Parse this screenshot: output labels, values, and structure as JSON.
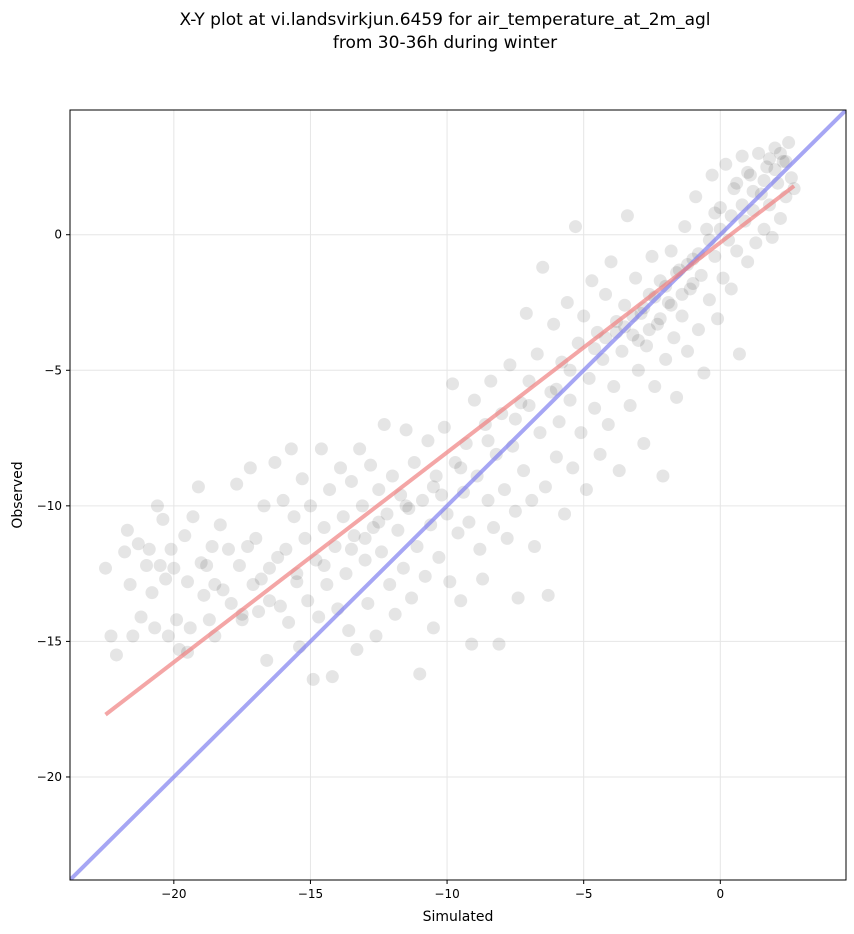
{
  "chart_data": {
    "type": "scatter",
    "title": [
      "X-Y plot at vi.landsvirkjun.6459 for air_temperature_at_2m_agl",
      "from 30-36h during winter"
    ],
    "xlabel": "Simulated",
    "ylabel": "Observed",
    "xlim": [
      -23.8,
      4.6
    ],
    "ylim": [
      -23.8,
      4.6
    ],
    "x_ticks": [
      -20,
      -15,
      -10,
      -5,
      0
    ],
    "y_ticks": [
      -20,
      -15,
      -10,
      -5,
      0
    ],
    "x_tick_labels": [
      "−20",
      "−15",
      "−10",
      "−5",
      "0"
    ],
    "y_tick_labels": [
      "−20",
      "−15",
      "−10",
      "−5",
      "0"
    ],
    "grid": true,
    "point_color": "#000000",
    "point_alpha": 0.1,
    "regression_line": {
      "color": "#f08080",
      "from": [
        -22.5,
        -17.7
      ],
      "to": [
        2.7,
        1.8
      ]
    },
    "identity_line": {
      "color": "#8080f0",
      "from": [
        -23.8,
        -23.8
      ],
      "to": [
        4.6,
        4.6
      ]
    },
    "points": [
      [
        -22.5,
        -12.3
      ],
      [
        -22.3,
        -14.8
      ],
      [
        -22.1,
        -15.5
      ],
      [
        -21.8,
        -11.7
      ],
      [
        -21.7,
        -10.9
      ],
      [
        -21.6,
        -12.9
      ],
      [
        -21.5,
        -14.8
      ],
      [
        -21.3,
        -11.4
      ],
      [
        -21.2,
        -14.1
      ],
      [
        -21.0,
        -12.2
      ],
      [
        -20.9,
        -11.6
      ],
      [
        -20.8,
        -13.2
      ],
      [
        -20.7,
        -14.5
      ],
      [
        -20.6,
        -10.0
      ],
      [
        -20.5,
        -12.2
      ],
      [
        -20.4,
        -10.5
      ],
      [
        -20.3,
        -12.7
      ],
      [
        -20.2,
        -14.8
      ],
      [
        -20.1,
        -11.6
      ],
      [
        -20.0,
        -12.3
      ],
      [
        -19.9,
        -14.2
      ],
      [
        -19.8,
        -15.3
      ],
      [
        -19.6,
        -11.1
      ],
      [
        -19.5,
        -12.8
      ],
      [
        -19.4,
        -14.5
      ],
      [
        -19.3,
        -10.4
      ],
      [
        -19.1,
        -9.3
      ],
      [
        -19.0,
        -12.1
      ],
      [
        -18.9,
        -13.3
      ],
      [
        -18.8,
        -12.2
      ],
      [
        -18.7,
        -14.2
      ],
      [
        -18.6,
        -11.5
      ],
      [
        -18.5,
        -12.9
      ],
      [
        -18.3,
        -10.7
      ],
      [
        -18.2,
        -13.1
      ],
      [
        -18.0,
        -11.6
      ],
      [
        -17.9,
        -13.6
      ],
      [
        -17.7,
        -9.2
      ],
      [
        -17.6,
        -12.2
      ],
      [
        -17.5,
        -14.0
      ],
      [
        -17.3,
        -11.5
      ],
      [
        -17.2,
        -8.6
      ],
      [
        -17.1,
        -12.9
      ],
      [
        -17.0,
        -11.2
      ],
      [
        -16.9,
        -13.9
      ],
      [
        -16.8,
        -12.7
      ],
      [
        -16.7,
        -10.0
      ],
      [
        -16.6,
        -15.7
      ],
      [
        -16.5,
        -12.3
      ],
      [
        -16.3,
        -8.4
      ],
      [
        -16.2,
        -11.9
      ],
      [
        -16.1,
        -13.7
      ],
      [
        -16.0,
        -9.8
      ],
      [
        -15.9,
        -11.6
      ],
      [
        -15.8,
        -14.3
      ],
      [
        -15.7,
        -7.9
      ],
      [
        -15.6,
        -10.4
      ],
      [
        -15.5,
        -12.5
      ],
      [
        -15.4,
        -15.2
      ],
      [
        -15.3,
        -9.0
      ],
      [
        -15.2,
        -11.2
      ],
      [
        -15.1,
        -13.5
      ],
      [
        -15.0,
        -10.0
      ],
      [
        -14.9,
        -16.4
      ],
      [
        -14.8,
        -12.0
      ],
      [
        -14.7,
        -14.1
      ],
      [
        -14.6,
        -7.9
      ],
      [
        -14.5,
        -10.8
      ],
      [
        -14.4,
        -12.9
      ],
      [
        -14.3,
        -9.4
      ],
      [
        -14.2,
        -16.3
      ],
      [
        -14.1,
        -11.5
      ],
      [
        -14.0,
        -13.8
      ],
      [
        -13.9,
        -8.6
      ],
      [
        -13.8,
        -10.4
      ],
      [
        -13.7,
        -12.5
      ],
      [
        -13.6,
        -14.6
      ],
      [
        -13.5,
        -9.1
      ],
      [
        -13.4,
        -11.1
      ],
      [
        -13.3,
        -15.3
      ],
      [
        -13.2,
        -7.9
      ],
      [
        -13.1,
        -10.0
      ],
      [
        -13.0,
        -12.0
      ],
      [
        -12.9,
        -13.6
      ],
      [
        -12.8,
        -8.5
      ],
      [
        -12.7,
        -10.8
      ],
      [
        -12.6,
        -14.8
      ],
      [
        -12.5,
        -9.4
      ],
      [
        -12.4,
        -11.7
      ],
      [
        -12.3,
        -7.0
      ],
      [
        -12.2,
        -10.3
      ],
      [
        -12.1,
        -12.9
      ],
      [
        -12.0,
        -8.9
      ],
      [
        -11.9,
        -14.0
      ],
      [
        -11.8,
        -10.9
      ],
      [
        -11.7,
        -9.6
      ],
      [
        -11.6,
        -12.3
      ],
      [
        -11.5,
        -7.2
      ],
      [
        -11.4,
        -10.1
      ],
      [
        -11.3,
        -13.4
      ],
      [
        -11.2,
        -8.4
      ],
      [
        -11.1,
        -11.5
      ],
      [
        -11.0,
        -16.2
      ],
      [
        -10.9,
        -9.8
      ],
      [
        -10.8,
        -12.6
      ],
      [
        -10.7,
        -7.6
      ],
      [
        -10.6,
        -10.7
      ],
      [
        -10.5,
        -14.5
      ],
      [
        -10.4,
        -8.9
      ],
      [
        -10.3,
        -11.9
      ],
      [
        -10.2,
        -9.6
      ],
      [
        -10.1,
        -7.1
      ],
      [
        -10.0,
        -10.3
      ],
      [
        -9.9,
        -12.8
      ],
      [
        -9.8,
        -5.5
      ],
      [
        -9.7,
        -8.4
      ],
      [
        -9.6,
        -11.0
      ],
      [
        -9.5,
        -13.5
      ],
      [
        -9.4,
        -9.5
      ],
      [
        -9.3,
        -7.7
      ],
      [
        -9.2,
        -10.6
      ],
      [
        -9.1,
        -15.1
      ],
      [
        -9.0,
        -6.1
      ],
      [
        -8.9,
        -8.9
      ],
      [
        -8.8,
        -11.6
      ],
      [
        -8.7,
        -12.7
      ],
      [
        -8.6,
        -7.0
      ],
      [
        -8.5,
        -9.8
      ],
      [
        -8.4,
        -5.4
      ],
      [
        -8.3,
        -10.8
      ],
      [
        -8.2,
        -8.1
      ],
      [
        -8.1,
        -15.1
      ],
      [
        -8.0,
        -6.6
      ],
      [
        -7.9,
        -9.4
      ],
      [
        -7.8,
        -11.2
      ],
      [
        -7.7,
        -4.8
      ],
      [
        -7.6,
        -7.8
      ],
      [
        -7.5,
        -10.2
      ],
      [
        -7.4,
        -13.4
      ],
      [
        -7.3,
        -6.2
      ],
      [
        -7.2,
        -8.7
      ],
      [
        -7.1,
        -2.9
      ],
      [
        -7.0,
        -5.4
      ],
      [
        -6.9,
        -9.8
      ],
      [
        -6.8,
        -11.5
      ],
      [
        -6.7,
        -4.4
      ],
      [
        -6.6,
        -7.3
      ],
      [
        -6.5,
        -1.2
      ],
      [
        -6.4,
        -9.3
      ],
      [
        -6.3,
        -13.3
      ],
      [
        -6.2,
        -5.8
      ],
      [
        -6.1,
        -3.3
      ],
      [
        -6.0,
        -8.2
      ],
      [
        -5.9,
        -6.9
      ],
      [
        -5.8,
        -4.7
      ],
      [
        -5.7,
        -10.3
      ],
      [
        -5.6,
        -2.5
      ],
      [
        -5.5,
        -6.1
      ],
      [
        -5.4,
        -8.6
      ],
      [
        -5.3,
        0.3
      ],
      [
        -5.2,
        -4.0
      ],
      [
        -5.1,
        -7.3
      ],
      [
        -5.0,
        -3.0
      ],
      [
        -4.9,
        -9.4
      ],
      [
        -4.8,
        -5.3
      ],
      [
        -4.7,
        -1.7
      ],
      [
        -4.6,
        -6.4
      ],
      [
        -4.5,
        -3.6
      ],
      [
        -4.4,
        -8.1
      ],
      [
        -4.3,
        -4.6
      ],
      [
        -4.2,
        -2.2
      ],
      [
        -4.1,
        -7.0
      ],
      [
        -4.0,
        -1.0
      ],
      [
        -3.9,
        -5.6
      ],
      [
        -3.8,
        -3.2
      ],
      [
        -3.7,
        -8.7
      ],
      [
        -3.6,
        -4.3
      ],
      [
        -3.5,
        -2.6
      ],
      [
        -3.4,
        0.7
      ],
      [
        -3.3,
        -6.3
      ],
      [
        -3.2,
        -3.7
      ],
      [
        -3.1,
        -1.6
      ],
      [
        -3.0,
        -5.0
      ],
      [
        -2.9,
        -2.9
      ],
      [
        -2.8,
        -7.7
      ],
      [
        -2.7,
        -4.1
      ],
      [
        -2.6,
        -2.2
      ],
      [
        -2.5,
        -0.8
      ],
      [
        -2.4,
        -5.6
      ],
      [
        -2.3,
        -3.3
      ],
      [
        -2.2,
        -1.7
      ],
      [
        -2.1,
        -8.9
      ],
      [
        -2.0,
        -4.6
      ],
      [
        -1.9,
        -2.5
      ],
      [
        -1.8,
        -0.6
      ],
      [
        -1.7,
        -3.8
      ],
      [
        -1.6,
        -6.0
      ],
      [
        -1.5,
        -1.3
      ],
      [
        -1.4,
        -3.0
      ],
      [
        -1.3,
        0.3
      ],
      [
        -1.2,
        -4.3
      ],
      [
        -1.1,
        -2.0
      ],
      [
        -1.0,
        -0.9
      ],
      [
        -0.9,
        1.4
      ],
      [
        -0.8,
        -3.5
      ],
      [
        -0.7,
        -1.5
      ],
      [
        -0.6,
        -5.1
      ],
      [
        -0.5,
        0.2
      ],
      [
        -0.4,
        -2.4
      ],
      [
        -0.3,
        2.2
      ],
      [
        -0.2,
        -0.8
      ],
      [
        -0.1,
        -3.1
      ],
      [
        0.0,
        1.0
      ],
      [
        0.1,
        -1.6
      ],
      [
        0.2,
        2.6
      ],
      [
        0.3,
        -0.2
      ],
      [
        0.4,
        -2.0
      ],
      [
        0.5,
        1.7
      ],
      [
        0.6,
        -0.6
      ],
      [
        0.7,
        -4.4
      ],
      [
        0.8,
        2.9
      ],
      [
        0.9,
        0.5
      ],
      [
        1.0,
        -1.0
      ],
      [
        1.1,
        2.2
      ],
      [
        1.2,
        0.9
      ],
      [
        1.3,
        -0.3
      ],
      [
        1.4,
        3.0
      ],
      [
        1.5,
        1.5
      ],
      [
        1.6,
        0.2
      ],
      [
        1.7,
        2.5
      ],
      [
        1.8,
        1.1
      ],
      [
        1.9,
        -0.1
      ],
      [
        2.0,
        3.2
      ],
      [
        2.1,
        1.9
      ],
      [
        2.2,
        0.6
      ],
      [
        2.3,
        2.7
      ],
      [
        2.4,
        1.4
      ],
      [
        2.5,
        3.4
      ],
      [
        2.6,
        2.1
      ],
      [
        2.7,
        1.7
      ],
      [
        -3.5,
        -3.4
      ],
      [
        -3.2,
        -3.0
      ],
      [
        -2.8,
        -2.7
      ],
      [
        -2.4,
        -2.3
      ],
      [
        -2.0,
        -1.9
      ],
      [
        -1.6,
        -1.4
      ],
      [
        -1.2,
        -1.1
      ],
      [
        -0.8,
        -0.7
      ],
      [
        -0.4,
        -0.2
      ],
      [
        0.0,
        0.2
      ],
      [
        0.4,
        0.7
      ],
      [
        0.8,
        1.1
      ],
      [
        1.2,
        1.6
      ],
      [
        1.6,
        2.0
      ],
      [
        2.0,
        2.4
      ],
      [
        2.4,
        2.7
      ],
      [
        -4.6,
        -4.2
      ],
      [
        -4.2,
        -3.8
      ],
      [
        -3.8,
        -3.6
      ],
      [
        -6.0,
        -5.7
      ],
      [
        -5.5,
        -5.0
      ],
      [
        -7.0,
        -6.3
      ],
      [
        -7.5,
        -6.8
      ],
      [
        -8.5,
        -7.6
      ],
      [
        -9.5,
        -8.6
      ],
      [
        -10.5,
        -9.3
      ],
      [
        -11.5,
        -10.0
      ],
      [
        -12.5,
        -10.6
      ],
      [
        -13.0,
        -11.2
      ],
      [
        -13.5,
        -11.6
      ],
      [
        -14.5,
        -12.2
      ],
      [
        -15.5,
        -12.8
      ],
      [
        -16.5,
        -13.5
      ],
      [
        -17.5,
        -14.2
      ],
      [
        -18.5,
        -14.8
      ],
      [
        -19.5,
        -15.4
      ],
      [
        -1.0,
        -1.8
      ],
      [
        -1.4,
        -2.2
      ],
      [
        -1.8,
        -2.6
      ],
      [
        -2.2,
        -3.1
      ],
      [
        -2.6,
        -3.5
      ],
      [
        -3.0,
        -3.9
      ],
      [
        -0.2,
        0.8
      ],
      [
        0.6,
        1.9
      ],
      [
        1.0,
        2.3
      ],
      [
        1.8,
        2.8
      ],
      [
        2.2,
        3.0
      ]
    ]
  }
}
